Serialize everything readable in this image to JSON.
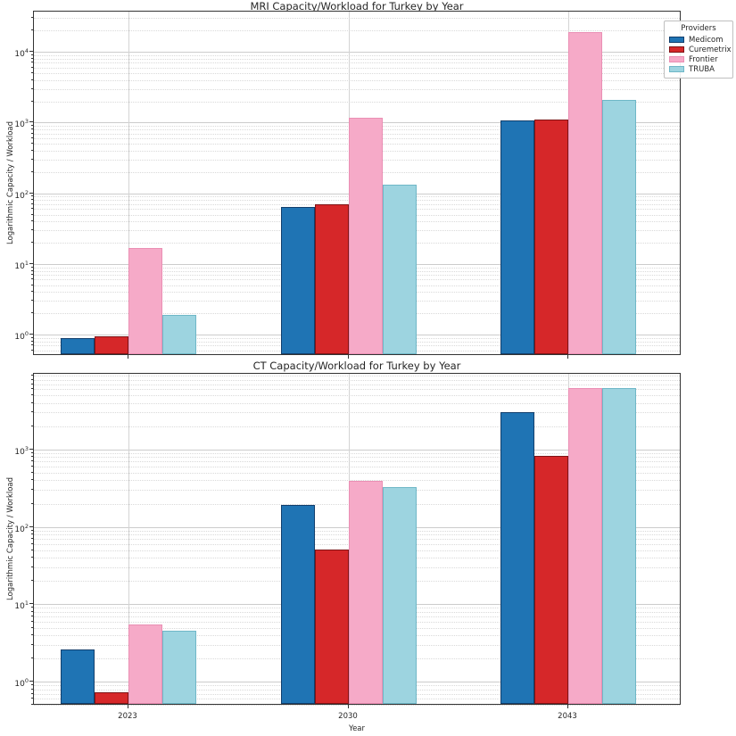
{
  "figure": {
    "background": "#ffffff"
  },
  "legend": {
    "title": "Providers",
    "entries": [
      {
        "label": "Medicom",
        "color": "#1f74b4",
        "edge": "#123f6d"
      },
      {
        "label": "Curemetrix",
        "color": "#d62729",
        "edge": "#7f1416"
      },
      {
        "label": "Frontier",
        "color": "#f6aac8",
        "edge": "#ea8fb4"
      },
      {
        "label": "TRUBA",
        "color": "#9dd4e0",
        "edge": "#6fb7c7"
      }
    ]
  },
  "chart_data": [
    {
      "type": "bar",
      "title": "MRI Capacity/Workload for Turkey by Year",
      "xlabel": "",
      "ylabel": "Logarithmic Capacity / Workload",
      "yscale": "log",
      "ylim": [
        0.5,
        37000
      ],
      "grid": true,
      "legend_position": "figure upper right",
      "categories": [
        "2023",
        "2030",
        "2043"
      ],
      "series": [
        {
          "name": "Medicom",
          "color": "#1f74b4",
          "edge": "#123f6d",
          "values": [
            0.85,
            60,
            1000
          ]
        },
        {
          "name": "Curemetrix",
          "color": "#d62729",
          "edge": "#7f1416",
          "values": [
            0.9,
            65,
            1050
          ]
        },
        {
          "name": "Frontier",
          "color": "#f6aac8",
          "edge": "#ea8fb4",
          "values": [
            16,
            1100,
            18000
          ]
        },
        {
          "name": "TRUBA",
          "color": "#9dd4e0",
          "edge": "#6fb7c7",
          "values": [
            1.8,
            125,
            2000
          ]
        }
      ]
    },
    {
      "type": "bar",
      "title": "CT Capacity/Workload for Turkey by Year",
      "xlabel": "Year",
      "ylabel": "Logarithmic Capacity / Workload",
      "yscale": "log",
      "ylim": [
        0.49,
        9500
      ],
      "grid": true,
      "categories": [
        "2023",
        "2030",
        "2043"
      ],
      "series": [
        {
          "name": "Medicom",
          "color": "#1f74b4",
          "edge": "#123f6d",
          "values": [
            2.5,
            180,
            2900
          ]
        },
        {
          "name": "Curemetrix",
          "color": "#d62729",
          "edge": "#7f1416",
          "values": [
            0.7,
            48,
            780
          ]
        },
        {
          "name": "Frontier",
          "color": "#f6aac8",
          "edge": "#ea8fb4",
          "values": [
            5.2,
            370,
            5900
          ]
        },
        {
          "name": "TRUBA",
          "color": "#9dd4e0",
          "edge": "#6fb7c7",
          "values": [
            4.3,
            310,
            5900
          ]
        }
      ]
    }
  ]
}
